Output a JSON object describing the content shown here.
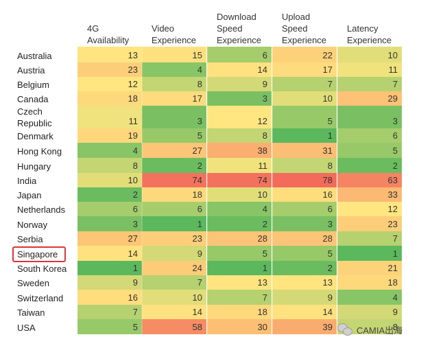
{
  "chart_data": {
    "type": "heatmap",
    "columns": [
      {
        "line1": "4G",
        "line2": "Availability"
      },
      {
        "line1": "Video",
        "line2": "Experience"
      },
      {
        "line1": "Download",
        "line2": "Speed",
        "line3": "Experience"
      },
      {
        "line1": "Upload",
        "line2": "Speed",
        "line3": "Experience"
      },
      {
        "line1": "Latency",
        "line2": "Experience"
      }
    ],
    "rows": [
      {
        "label": [
          "Australia"
        ],
        "values": [
          13,
          15,
          6,
          22,
          10
        ]
      },
      {
        "label": [
          "Austria"
        ],
        "values": [
          23,
          4,
          14,
          17,
          11
        ]
      },
      {
        "label": [
          "Belgium"
        ],
        "values": [
          12,
          8,
          9,
          7,
          7
        ]
      },
      {
        "label": [
          "Canada"
        ],
        "values": [
          18,
          17,
          3,
          10,
          29
        ]
      },
      {
        "label": [
          "Czech",
          "Republic"
        ],
        "values": [
          11,
          3,
          12,
          5,
          3
        ]
      },
      {
        "label": [
          "Denmark"
        ],
        "values": [
          19,
          5,
          8,
          1,
          6
        ]
      },
      {
        "label": [
          "Hong Kong"
        ],
        "values": [
          4,
          27,
          38,
          31,
          5
        ]
      },
      {
        "label": [
          "Hungary"
        ],
        "values": [
          8,
          2,
          11,
          8,
          2
        ]
      },
      {
        "label": [
          "India"
        ],
        "values": [
          10,
          74,
          74,
          78,
          63
        ]
      },
      {
        "label": [
          "Japan"
        ],
        "values": [
          2,
          18,
          10,
          16,
          33
        ]
      },
      {
        "label": [
          "Netherlands"
        ],
        "values": [
          6,
          6,
          4,
          6,
          12
        ]
      },
      {
        "label": [
          "Norway"
        ],
        "values": [
          3,
          1,
          2,
          3,
          23
        ]
      },
      {
        "label": [
          "Serbia"
        ],
        "values": [
          27,
          23,
          28,
          28,
          7
        ]
      },
      {
        "label": [
          "Singapore"
        ],
        "values": [
          14,
          9,
          5,
          5,
          1
        ],
        "highlighted": true
      },
      {
        "label": [
          "South Korea"
        ],
        "values": [
          1,
          24,
          1,
          2,
          21
        ]
      },
      {
        "label": [
          "Sweden"
        ],
        "values": [
          9,
          7,
          13,
          13,
          18
        ]
      },
      {
        "label": [
          "Switzerland"
        ],
        "values": [
          16,
          10,
          7,
          9,
          4
        ]
      },
      {
        "label": [
          "Taiwan"
        ],
        "values": [
          7,
          14,
          18,
          14,
          9
        ]
      },
      {
        "label": [
          "USA"
        ],
        "values": [
          5,
          58,
          30,
          39,
          8
        ]
      }
    ],
    "color_scale": {
      "low": "#5cb85c",
      "mid": "#ffe680",
      "high": "#f26b5b"
    },
    "highlight_color": "#d9343a"
  },
  "watermark": {
    "text": "CAMIA出海"
  }
}
